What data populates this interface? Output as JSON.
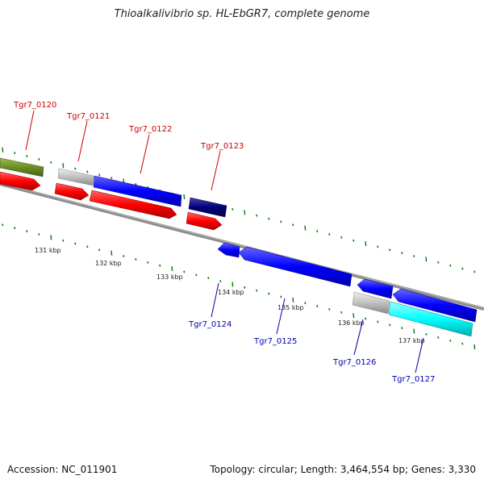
{
  "title": "Thioalkalivibrio sp. HL-EbGR7, complete genome",
  "accession": "Accession: NC_011901",
  "topology": "Topology: circular; Length: 3,464,554 bp; Genes: 3,330",
  "colors": {
    "backbone": "#808080",
    "tick": "#0a7a0a",
    "red": "#ff0000",
    "blue": "#0000ff",
    "navy": "#00007a",
    "gray": "#bfbfbf",
    "cyan": "#00ffff",
    "olive": "#6b8e23",
    "label_red": "#cc0000",
    "label_blue": "#0000b0"
  },
  "scale_labels": [
    "131 kbp",
    "132 kbp",
    "133 kbp",
    "134 kbp",
    "135 kbp",
    "136 kbp",
    "137 kbp"
  ],
  "labels_top": [
    "Tgr7_0120",
    "Tgr7_0121",
    "Tgr7_0122",
    "Tgr7_0123"
  ],
  "labels_bottom": [
    "Tgr7_0124",
    "Tgr7_0125",
    "Tgr7_0126",
    "Tgr7_0127"
  ]
}
